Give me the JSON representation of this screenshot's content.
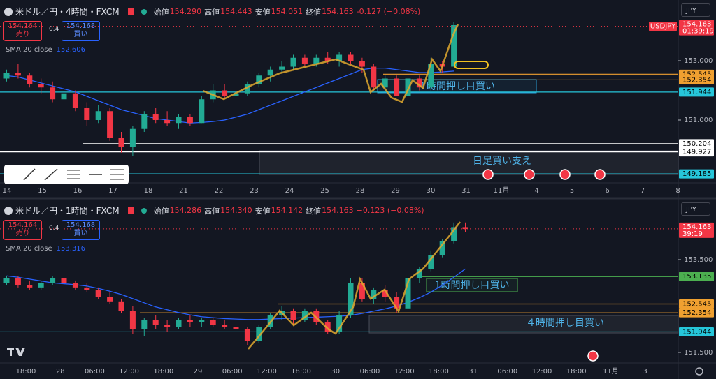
{
  "up_color": "#22ab94",
  "down_color": "#f23645",
  "sma_color": "#2962ff",
  "panels": [
    {
      "header": {
        "symbol": "米ドル／円・4時間・FXCM",
        "open_label": "始値",
        "open": "154.290",
        "high_label": "高値",
        "high": "154.443",
        "low_label": "安値",
        "low": "154.051",
        "close_label": "終値",
        "close": "154.163",
        "change": "-0.127 (−0.08%)"
      },
      "sell": "154.164",
      "sell_label": "売り",
      "spread": "0.4",
      "buy": "154.168",
      "buy_label": "買い",
      "sma_label": "SMA 20 close",
      "sma_value": "152.606",
      "currency": "JPY",
      "symbol_tag": "USDJPY",
      "last": {
        "value": 154.163,
        "label": "154.163",
        "countdown": "01:39:19"
      },
      "ylim": [
        148.882,
        155.047
      ],
      "price_ticks": [
        {
          "value": 153,
          "label": "153.000"
        },
        {
          "value": 151,
          "label": "151.000"
        }
      ],
      "levels": [
        {
          "value": 152.545,
          "label": "152.545",
          "color": "#f0a030"
        },
        {
          "value": 152.354,
          "label": "152.354",
          "color": "#f0a030"
        },
        {
          "value": 151.944,
          "label": "151.944",
          "color": "#26c6da"
        },
        {
          "value": 150.204,
          "label": "150.204",
          "color": "#ffffff"
        },
        {
          "value": 149.927,
          "label": "149.927",
          "color": "#ffffff"
        },
        {
          "value": 149.185,
          "label": "149.185",
          "color": "#26c6da"
        }
      ],
      "annotations": [
        {
          "text": "４時間押し目買い"
        },
        {
          "text": "日足買い支え"
        }
      ],
      "time_labels": [
        "14",
        "15",
        "16",
        "17",
        "18",
        "21",
        "22",
        "23",
        "24",
        "25",
        "28",
        "29",
        "30",
        "31",
        "11月",
        "4",
        "5",
        "6",
        "7",
        "8"
      ],
      "candles": [
        [
          152.4,
          152.7,
          152.3,
          152.6
        ],
        [
          152.6,
          152.9,
          152.4,
          152.5
        ],
        [
          152.5,
          152.6,
          152.1,
          152.2
        ],
        [
          152.2,
          152.4,
          151.9,
          152.1
        ],
        [
          152.1,
          152.3,
          151.6,
          151.7
        ],
        [
          151.7,
          152.0,
          151.5,
          151.9
        ],
        [
          151.9,
          152.0,
          151.3,
          151.4
        ],
        [
          151.4,
          151.6,
          150.8,
          151.0
        ],
        [
          151.0,
          151.5,
          150.9,
          151.3
        ],
        [
          151.3,
          151.4,
          150.3,
          150.4
        ],
        [
          150.4,
          150.6,
          149.9,
          150.1
        ],
        [
          150.1,
          150.8,
          149.8,
          150.7
        ],
        [
          150.7,
          151.3,
          150.6,
          151.2
        ],
        [
          151.2,
          151.4,
          150.9,
          151.0
        ],
        [
          151.0,
          151.3,
          150.8,
          150.9
        ],
        [
          150.9,
          151.2,
          150.7,
          151.1
        ],
        [
          151.1,
          151.2,
          150.8,
          150.9
        ],
        [
          150.9,
          151.8,
          150.9,
          151.7
        ],
        [
          151.7,
          152.2,
          151.6,
          152.0
        ],
        [
          152.0,
          152.2,
          151.7,
          151.8
        ],
        [
          151.8,
          152.0,
          151.6,
          151.9
        ],
        [
          151.9,
          152.3,
          151.8,
          152.2
        ],
        [
          152.2,
          152.6,
          152.1,
          152.5
        ],
        [
          152.5,
          152.8,
          152.3,
          152.7
        ],
        [
          152.7,
          153.0,
          152.6,
          152.8
        ],
        [
          152.8,
          153.2,
          152.7,
          153.1
        ],
        [
          153.1,
          153.2,
          152.8,
          152.9
        ],
        [
          152.9,
          153.2,
          152.8,
          153.1
        ],
        [
          153.1,
          153.3,
          152.9,
          153.0
        ],
        [
          153.0,
          153.3,
          152.8,
          153.2
        ],
        [
          153.2,
          153.3,
          152.9,
          153.0
        ],
        [
          153.0,
          153.1,
          152.6,
          152.8
        ],
        [
          152.8,
          152.9,
          152.0,
          152.1
        ],
        [
          152.1,
          152.5,
          152.0,
          152.4
        ],
        [
          152.4,
          152.5,
          151.8,
          151.8
        ],
        [
          151.8,
          152.5,
          151.7,
          152.4
        ],
        [
          152.4,
          152.5,
          152.0,
          152.1
        ],
        [
          152.1,
          153.1,
          152.0,
          152.9
        ],
        [
          152.9,
          153.0,
          152.6,
          152.8
        ],
        [
          152.8,
          154.3,
          152.8,
          154.2
        ]
      ],
      "sma": [
        152.5,
        152.45,
        152.35,
        152.25,
        152.15,
        152.05,
        151.95,
        151.8,
        151.65,
        151.5,
        151.35,
        151.25,
        151.15,
        151.05,
        151.0,
        150.95,
        150.9,
        150.92,
        150.95,
        151.0,
        151.1,
        151.2,
        151.35,
        151.5,
        151.65,
        151.8,
        151.95,
        152.1,
        152.25,
        152.4,
        152.55,
        152.7,
        152.75,
        152.75,
        152.7,
        152.65,
        152.6,
        152.6,
        152.62,
        152.65
      ]
    },
    {
      "header": {
        "symbol": "米ドル／円・1時間・FXCM",
        "open_label": "始値",
        "open": "154.286",
        "high_label": "高値",
        "high": "154.340",
        "low_label": "安値",
        "low": "154.142",
        "close_label": "終値",
        "close": "154.163",
        "change": "−0.123 (−0.08%)"
      },
      "sell": "154.164",
      "sell_label": "売り",
      "spread": "0.4",
      "buy": "154.168",
      "buy_label": "買い",
      "sma_label": "SMA 20 close",
      "sma_value": "153.316",
      "currency": "JPY",
      "last": {
        "value": 154.163,
        "label": "154.163",
        "countdown": "39:19"
      },
      "ylim": [
        151.274,
        154.808
      ],
      "price_ticks": [
        {
          "value": 153.5,
          "label": "153.500"
        },
        {
          "value": 151.5,
          "label": "151.500"
        }
      ],
      "levels": [
        {
          "value": 153.135,
          "label": "153.135",
          "color": "#4caf50"
        },
        {
          "value": 152.545,
          "label": "152.545",
          "color": "#f0a030"
        },
        {
          "value": 152.354,
          "label": "152.354",
          "color": "#f0a030"
        },
        {
          "value": 151.944,
          "label": "151.944",
          "color": "#26c6da"
        }
      ],
      "annotations": [
        {
          "text": "1時間押し目買い"
        },
        {
          "text": "４時間押し目買い"
        }
      ],
      "time_labels": [
        "18:00",
        "28",
        "06:00",
        "12:00",
        "18:00",
        "29",
        "06:00",
        "12:00",
        "18:00",
        "30",
        "06:00",
        "12:00",
        "18:00",
        "31",
        "06:00",
        "12:00",
        "18:00",
        "11月",
        "3"
      ],
      "candles": [
        [
          153.0,
          153.15,
          152.95,
          153.1
        ],
        [
          153.1,
          153.15,
          152.9,
          152.95
        ],
        [
          152.95,
          153.05,
          152.85,
          152.9
        ],
        [
          152.9,
          153.05,
          152.85,
          153.0
        ],
        [
          153.0,
          153.15,
          152.95,
          153.1
        ],
        [
          153.1,
          153.15,
          152.95,
          153.0
        ],
        [
          153.0,
          153.05,
          152.85,
          152.9
        ],
        [
          152.9,
          153.0,
          152.8,
          152.85
        ],
        [
          152.85,
          152.9,
          152.65,
          152.7
        ],
        [
          152.7,
          152.8,
          152.55,
          152.6
        ],
        [
          152.6,
          152.65,
          152.35,
          152.4
        ],
        [
          152.4,
          152.5,
          151.9,
          152.0
        ],
        [
          152.0,
          152.25,
          151.85,
          152.2
        ],
        [
          152.2,
          152.3,
          152.0,
          152.1
        ],
        [
          152.1,
          152.2,
          151.95,
          152.05
        ],
        [
          152.05,
          152.25,
          152.0,
          152.2
        ],
        [
          152.2,
          152.3,
          152.05,
          152.15
        ],
        [
          152.15,
          152.25,
          152.05,
          152.2
        ],
        [
          152.2,
          152.25,
          152.05,
          152.1
        ],
        [
          152.1,
          152.2,
          152.0,
          152.05
        ],
        [
          152.05,
          152.15,
          151.95,
          152.0
        ],
        [
          152.0,
          152.05,
          151.65,
          151.75
        ],
        [
          151.75,
          152.1,
          151.7,
          152.05
        ],
        [
          152.05,
          152.35,
          152.0,
          152.3
        ],
        [
          152.3,
          152.5,
          152.2,
          152.4
        ],
        [
          152.4,
          152.45,
          152.1,
          152.2
        ],
        [
          152.2,
          152.45,
          152.15,
          152.4
        ],
        [
          152.4,
          152.45,
          152.1,
          152.15
        ],
        [
          152.15,
          152.2,
          151.9,
          151.95
        ],
        [
          151.95,
          152.4,
          151.9,
          152.3
        ],
        [
          152.3,
          153.1,
          152.25,
          153.0
        ],
        [
          153.0,
          153.1,
          152.6,
          152.65
        ],
        [
          152.65,
          152.9,
          152.55,
          152.85
        ],
        [
          152.85,
          152.95,
          152.6,
          152.7
        ],
        [
          152.7,
          152.8,
          152.35,
          152.45
        ],
        [
          152.45,
          153.2,
          152.4,
          153.1
        ],
        [
          153.1,
          153.35,
          153.0,
          153.3
        ],
        [
          153.3,
          153.7,
          153.25,
          153.6
        ],
        [
          153.6,
          153.95,
          153.55,
          153.9
        ],
        [
          153.9,
          154.3,
          153.85,
          154.2
        ],
        [
          154.2,
          154.3,
          154.1,
          154.16
        ]
      ],
      "sma": [
        153.15,
        153.12,
        153.08,
        153.04,
        153.0,
        152.98,
        152.96,
        152.93,
        152.88,
        152.82,
        152.75,
        152.66,
        152.57,
        152.48,
        152.42,
        152.36,
        152.31,
        152.27,
        152.25,
        152.23,
        152.22,
        152.21,
        152.21,
        152.22,
        152.23,
        152.24,
        152.25,
        152.26,
        152.27,
        152.28,
        152.3,
        152.34,
        152.39,
        152.44,
        152.5,
        152.58,
        152.68,
        152.8,
        152.95,
        153.12,
        153.3
      ]
    }
  ]
}
